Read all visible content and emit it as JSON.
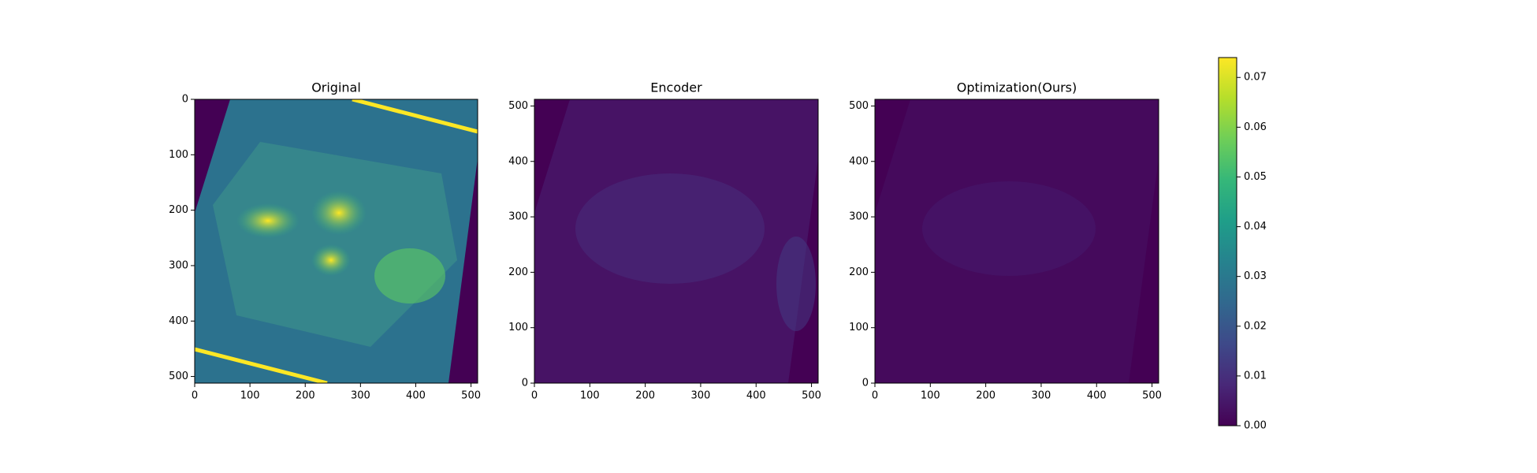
{
  "chart_data": [
    {
      "type": "image",
      "title": "Original",
      "xlim": [
        0,
        512
      ],
      "ylim": [
        512,
        0
      ],
      "xticks": [
        0,
        100,
        200,
        300,
        400,
        500
      ],
      "yticks": [
        0,
        100,
        200,
        300,
        400,
        500
      ]
    },
    {
      "type": "image",
      "title": "Encoder",
      "xlim": [
        0,
        512
      ],
      "ylim": [
        0,
        512
      ],
      "xticks": [
        0,
        100,
        200,
        300,
        400,
        500
      ],
      "yticks": [
        0,
        100,
        200,
        300,
        400,
        500
      ]
    },
    {
      "type": "image",
      "title": "Optimization(Ours)",
      "xlim": [
        0,
        512
      ],
      "ylim": [
        0,
        512
      ],
      "xticks": [
        0,
        100,
        200,
        300,
        400,
        500
      ],
      "yticks": [
        0,
        100,
        200,
        300,
        400,
        500
      ]
    },
    {
      "type": "colorbar",
      "colormap": "viridis",
      "ylim": [
        0,
        0.074
      ],
      "yticks": [
        {
          "value": 0,
          "label": "0.00"
        },
        {
          "value": 0.01,
          "label": "0.01"
        },
        {
          "value": 0.02,
          "label": "0.02"
        },
        {
          "value": 0.03,
          "label": "0.03"
        },
        {
          "value": 0.04,
          "label": "0.04"
        },
        {
          "value": 0.05,
          "label": "0.05"
        },
        {
          "value": 0.06,
          "label": "0.06"
        },
        {
          "value": 0.07,
          "label": "0.07"
        }
      ]
    }
  ]
}
